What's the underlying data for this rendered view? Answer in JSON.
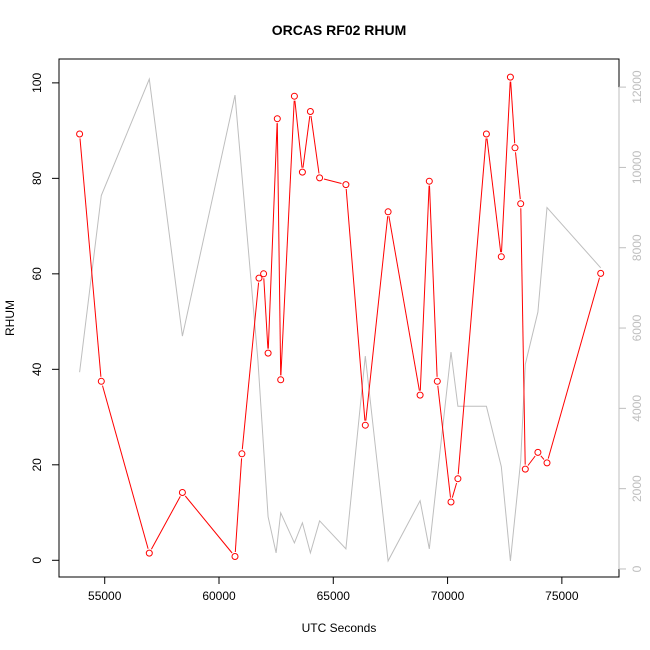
{
  "chart_data": {
    "type": "line",
    "title": "ORCAS RF02 RHUM",
    "xlabel": "UTC Seconds",
    "ylabel": "RHUM",
    "xlim": [
      53000,
      77500
    ],
    "ylim": [
      -3.5,
      105
    ],
    "y2lim": [
      -200,
      12700
    ],
    "x_ticks": [
      55000,
      60000,
      65000,
      70000,
      75000
    ],
    "y_ticks": [
      0,
      20,
      40,
      60,
      80,
      100
    ],
    "y2_ticks": [
      0,
      2000,
      4000,
      6000,
      8000,
      10000,
      12000
    ],
    "grid": false,
    "colors": {
      "primary": "#ff0000",
      "secondary": "#bebebe",
      "axis": "#000000",
      "secondary_axis": "#bebebe"
    },
    "series": [
      {
        "axis": "left",
        "style": "line+circle",
        "points": [
          [
            53900,
            89.3
          ],
          [
            54850,
            37.5
          ],
          [
            56950,
            1.5
          ],
          [
            58400,
            14.2
          ],
          [
            60700,
            0.8
          ],
          [
            61000,
            22.3
          ],
          [
            61750,
            59.1
          ],
          [
            61950,
            60.0
          ],
          [
            62150,
            43.4
          ],
          [
            62550,
            92.5
          ],
          [
            62700,
            37.8
          ],
          [
            63300,
            97.2
          ],
          [
            63650,
            81.3
          ],
          [
            64000,
            94.0
          ],
          [
            64400,
            80.1
          ],
          [
            65550,
            78.7
          ],
          [
            66400,
            28.3
          ],
          [
            67400,
            73.0
          ],
          [
            68800,
            34.6
          ],
          [
            69200,
            79.4
          ],
          [
            69550,
            37.5
          ],
          [
            70150,
            12.2
          ],
          [
            70450,
            17.1
          ],
          [
            71700,
            89.3
          ],
          [
            72350,
            63.6
          ],
          [
            72750,
            101.2
          ],
          [
            72950,
            86.4
          ],
          [
            73200,
            74.7
          ],
          [
            73400,
            19.1
          ],
          [
            73950,
            22.6
          ],
          [
            74350,
            20.4
          ],
          [
            76700,
            60.1
          ]
        ]
      },
      {
        "axis": "right",
        "style": "line",
        "points": [
          [
            53900,
            4900
          ],
          [
            54850,
            9300
          ],
          [
            56950,
            12200
          ],
          [
            58400,
            5800
          ],
          [
            60700,
            11800
          ],
          [
            61700,
            5200
          ],
          [
            62150,
            1300
          ],
          [
            62500,
            400
          ],
          [
            62700,
            1400
          ],
          [
            63300,
            650
          ],
          [
            63650,
            1150
          ],
          [
            64000,
            400
          ],
          [
            64400,
            1200
          ],
          [
            65550,
            500
          ],
          [
            66400,
            5300
          ],
          [
            67400,
            200
          ],
          [
            68800,
            1700
          ],
          [
            69200,
            500
          ],
          [
            70150,
            5400
          ],
          [
            70450,
            4050
          ],
          [
            71700,
            4050
          ],
          [
            72350,
            2550
          ],
          [
            72750,
            200
          ],
          [
            73200,
            2700
          ],
          [
            73400,
            5100
          ],
          [
            73950,
            6400
          ],
          [
            74350,
            9000
          ],
          [
            76700,
            7500
          ]
        ]
      }
    ]
  }
}
